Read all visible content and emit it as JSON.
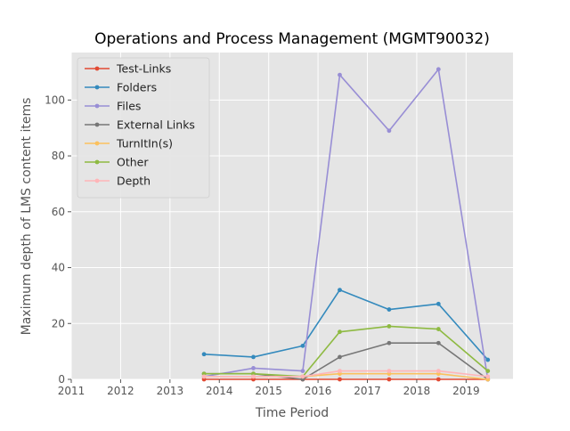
{
  "chart_data": {
    "type": "line",
    "title": "Operations and Process Management (MGMT90032)",
    "xlabel": "Time Period",
    "ylabel": "Maximum depth of LMS content items",
    "xlim": [
      2011.0,
      2019.95
    ],
    "ylim": [
      0,
      117
    ],
    "xticks": [
      2011,
      2012,
      2013,
      2014,
      2015,
      2016,
      2017,
      2018,
      2019
    ],
    "yticks": [
      0,
      20,
      40,
      60,
      80,
      100
    ],
    "grid": true,
    "legend_position": "upper-left",
    "x": [
      2013.69,
      2014.69,
      2015.69,
      2016.44,
      2017.44,
      2018.44,
      2019.44
    ],
    "series": [
      {
        "name": "Test-Links",
        "color": "#E24A33",
        "values": [
          0,
          0,
          0,
          0,
          0,
          0,
          0
        ]
      },
      {
        "name": "Folders",
        "color": "#348ABD",
        "values": [
          9,
          8,
          12,
          32,
          25,
          27,
          7
        ]
      },
      {
        "name": "Files",
        "color": "#988ED5",
        "values": [
          1,
          4,
          3,
          109,
          89,
          111,
          0
        ]
      },
      {
        "name": "External Links",
        "color": "#777777",
        "values": [
          2,
          2,
          0,
          8,
          13,
          13,
          0
        ]
      },
      {
        "name": "TurnItIn(s)",
        "color": "#FBC15E",
        "values": [
          1,
          1,
          1,
          2,
          2,
          2,
          0
        ]
      },
      {
        "name": "Other",
        "color": "#8EBA42",
        "values": [
          2,
          2,
          1,
          17,
          19,
          18,
          3
        ]
      },
      {
        "name": "Depth",
        "color": "#FFB5B8",
        "values": [
          1,
          1,
          1,
          3,
          3,
          3,
          1
        ]
      }
    ]
  }
}
